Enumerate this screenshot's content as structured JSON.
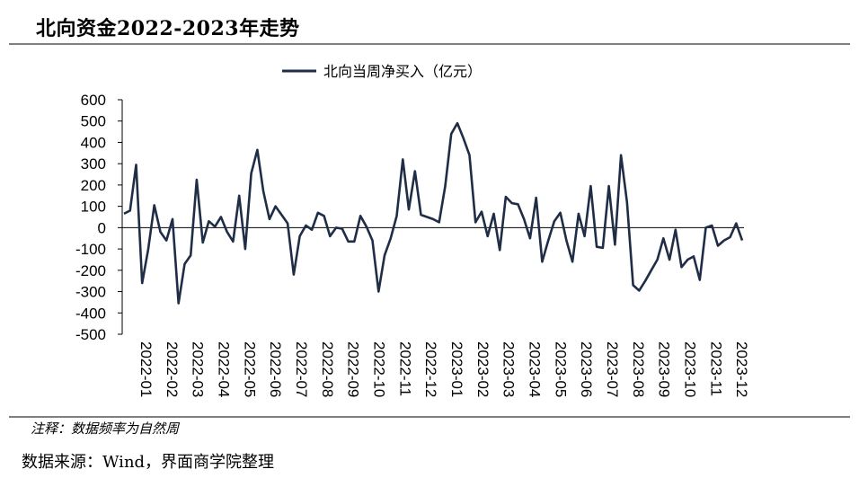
{
  "header": {
    "title": "北向资金2022-2023年走势"
  },
  "footer": {
    "note": "注释：数据频率为自然周",
    "source": "数据来源：Wind，界面商学院整理"
  },
  "colors": {
    "series": "#1f2d46",
    "rule": "#7f7f7f"
  },
  "chart_data": {
    "type": "line",
    "title": "",
    "xlabel": "",
    "ylabel": "",
    "ylim": [
      -500,
      600
    ],
    "yticks": [
      600,
      500,
      400,
      300,
      200,
      100,
      0,
      -100,
      -200,
      -300,
      -400,
      -500
    ],
    "grid": false,
    "legend": "top-center",
    "x_tick_labels": [
      "2022-01",
      "2022-02",
      "2022-03",
      "2022-04",
      "2022-05",
      "2022-06",
      "2022-07",
      "2022-08",
      "2022-09",
      "2022-10",
      "2022-11",
      "2022-12",
      "2023-01",
      "2023-02",
      "2023-03",
      "2023-04",
      "2023-05",
      "2023-06",
      "2023-07",
      "2023-08",
      "2023-09",
      "2023-10",
      "2023-11",
      "2023-12"
    ],
    "series": [
      {
        "name": "北向当周净买入（亿元）",
        "values": [
          65,
          80,
          295,
          -260,
          -100,
          105,
          -20,
          -60,
          40,
          -355,
          -170,
          -130,
          225,
          -70,
          30,
          5,
          50,
          -20,
          -65,
          150,
          -100,
          255,
          365,
          170,
          40,
          100,
          60,
          20,
          -220,
          -40,
          10,
          -10,
          70,
          55,
          -40,
          0,
          -5,
          -65,
          -65,
          55,
          5,
          -60,
          -300,
          -130,
          -50,
          55,
          320,
          85,
          265,
          60,
          50,
          40,
          25,
          195,
          440,
          490,
          420,
          340,
          25,
          75,
          -40,
          65,
          -105,
          145,
          115,
          110,
          40,
          -50,
          140,
          -160,
          -60,
          30,
          70,
          -60,
          -160,
          65,
          -40,
          195,
          -90,
          -95,
          195,
          -80,
          340,
          120,
          -270,
          -295,
          -250,
          -200,
          -150,
          -50,
          -150,
          -10,
          -185,
          -150,
          -135,
          -245,
          0,
          10,
          -85,
          -60,
          -45,
          20,
          -60
        ]
      }
    ]
  }
}
